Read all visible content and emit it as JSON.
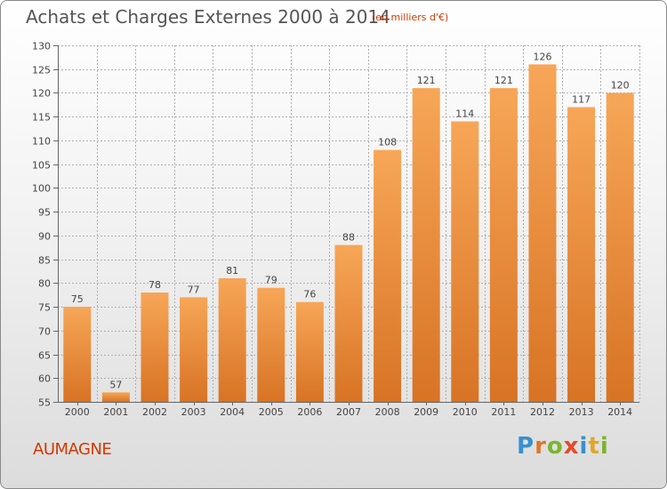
{
  "header": {
    "title": "Achats et Charges Externes 2000 à 2014",
    "subtitle": "(en milliers d'€)"
  },
  "footer": {
    "commune": "AUMAGNE",
    "logo_text": "Proxiti",
    "logo_letters": [
      {
        "ch": "P",
        "color": "#3a8fd0"
      },
      {
        "ch": "r",
        "color": "#e0762a"
      },
      {
        "ch": "o",
        "color": "#7bb52f"
      },
      {
        "ch": "x",
        "color": "#e04b2a"
      },
      {
        "ch": "i",
        "color": "#3a8fd0"
      },
      {
        "ch": "t",
        "color": "#e0a62a"
      },
      {
        "ch": "i",
        "color": "#7bb52f"
      }
    ]
  },
  "colors": {
    "bar_light": "#f7a657",
    "bar_dark": "#d87324",
    "grid": "#b0b0b0",
    "axis_text": "#444444",
    "title": "#555555",
    "accent": "#d03a00"
  },
  "chart_data": {
    "type": "bar",
    "title": "Achats et Charges Externes 2000 à 2014",
    "subtitle": "(en milliers d'€)",
    "categories": [
      "2000",
      "2001",
      "2002",
      "2003",
      "2004",
      "2005",
      "2006",
      "2007",
      "2008",
      "2009",
      "2010",
      "2011",
      "2012",
      "2013",
      "2014"
    ],
    "values": [
      75,
      57,
      78,
      77,
      81,
      79,
      76,
      88,
      108,
      121,
      114,
      121,
      126,
      117,
      120
    ],
    "ylim": [
      55,
      130
    ],
    "yticks": [
      55,
      60,
      65,
      70,
      75,
      80,
      85,
      90,
      95,
      100,
      105,
      110,
      115,
      120,
      125,
      130
    ],
    "grid": true,
    "data_labels": true
  }
}
